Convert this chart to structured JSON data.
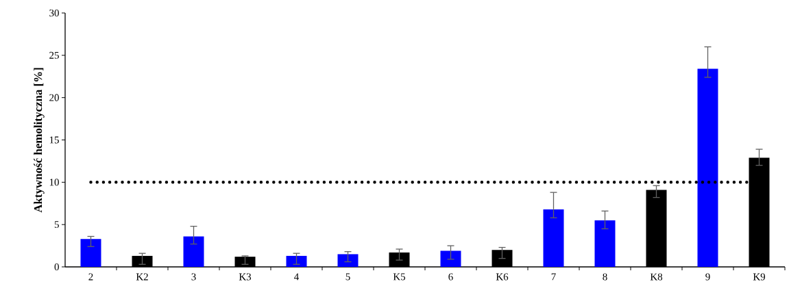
{
  "chart_data": {
    "type": "bar",
    "ylabel": "Aktywność hemolityczna [%]",
    "categories": [
      "2",
      "K2",
      "3",
      "K3",
      "4",
      "5",
      "K5",
      "6",
      "K6",
      "7",
      "8",
      "K8",
      "9",
      "K9"
    ],
    "values": [
      3.3,
      1.3,
      3.6,
      1.2,
      1.3,
      1.5,
      1.7,
      1.9,
      2.0,
      6.8,
      5.5,
      9.1,
      23.4,
      12.9
    ],
    "errors": [
      [
        2.4,
        3.6
      ],
      [
        0.3,
        1.6
      ],
      [
        2.7,
        4.8
      ],
      [
        0.3,
        1.3
      ],
      [
        0.3,
        1.6
      ],
      [
        0.6,
        1.8
      ],
      [
        0.8,
        2.1
      ],
      [
        0.9,
        2.5
      ],
      [
        1.0,
        2.3
      ],
      [
        5.8,
        8.8
      ],
      [
        4.5,
        6.6
      ],
      [
        8.2,
        9.6
      ],
      [
        22.4,
        26.0
      ],
      [
        12.0,
        13.9
      ]
    ],
    "colors": [
      "#0000ff",
      "#000000",
      "#0000ff",
      "#000000",
      "#0000ff",
      "#0000ff",
      "#000000",
      "#0000ff",
      "#000000",
      "#0000ff",
      "#0000ff",
      "#000000",
      "#0000ff",
      "#000000"
    ],
    "ylim": [
      0,
      30
    ],
    "yticks": [
      0,
      5,
      10,
      15,
      20,
      25,
      30
    ],
    "ref_lines": [
      {
        "axis": "y",
        "value": 10,
        "color": "#000000",
        "line_style": "dotted"
      }
    ],
    "grid": false
  }
}
